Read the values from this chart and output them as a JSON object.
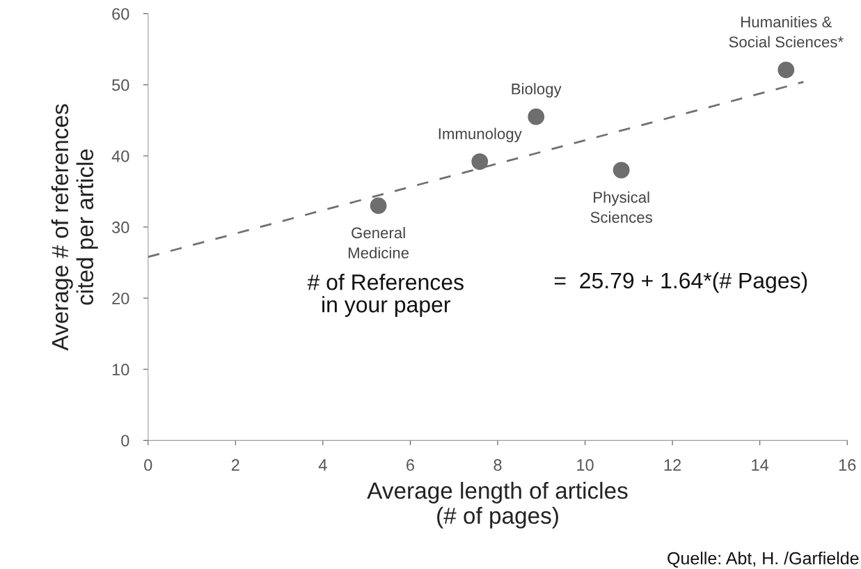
{
  "chart_data": {
    "type": "scatter",
    "xlabel": "Average length of articles\n(# of pages)",
    "ylabel": "Average # of references\ncited per article",
    "x": [
      5.27,
      7.59,
      8.88,
      10.83,
      14.6
    ],
    "series": [
      {
        "color": "#6e6e6e",
        "marker": "circle",
        "values": [
          33,
          39.2,
          45.5,
          38.0,
          52.1
        ]
      },
      {
        "type": "line",
        "color": "#707070",
        "line_style": "dashed",
        "marker": "none",
        "x": [
          0,
          15
        ],
        "values": [
          25.8,
          50.4
        ]
      }
    ],
    "xlim": [
      0,
      16
    ],
    "xticks": [
      0,
      2,
      4,
      6,
      8,
      10,
      12,
      14,
      16
    ],
    "ylim": [
      0,
      60
    ],
    "yticks": [
      0,
      10,
      20,
      30,
      40,
      50,
      60
    ],
    "grid": false,
    "annotations": [
      {
        "text": "General\nMedicine",
        "x": 5.27,
        "y": 33
      },
      {
        "text": "Immunology",
        "x": 7.59,
        "y": 39.2
      },
      {
        "text": "Biology",
        "x": 8.88,
        "y": 45.5
      },
      {
        "text": "Physical\nSciences",
        "x": 10.83,
        "y": 38.0
      },
      {
        "text": "Humanities &\nSocial Sciences*",
        "x": 14.6,
        "y": 52.1
      },
      "# of References\nin your paper",
      "=  25.79 + 1.64*(# Pages)",
      "Quelle: Abt, H. /Garfielde"
    ]
  }
}
